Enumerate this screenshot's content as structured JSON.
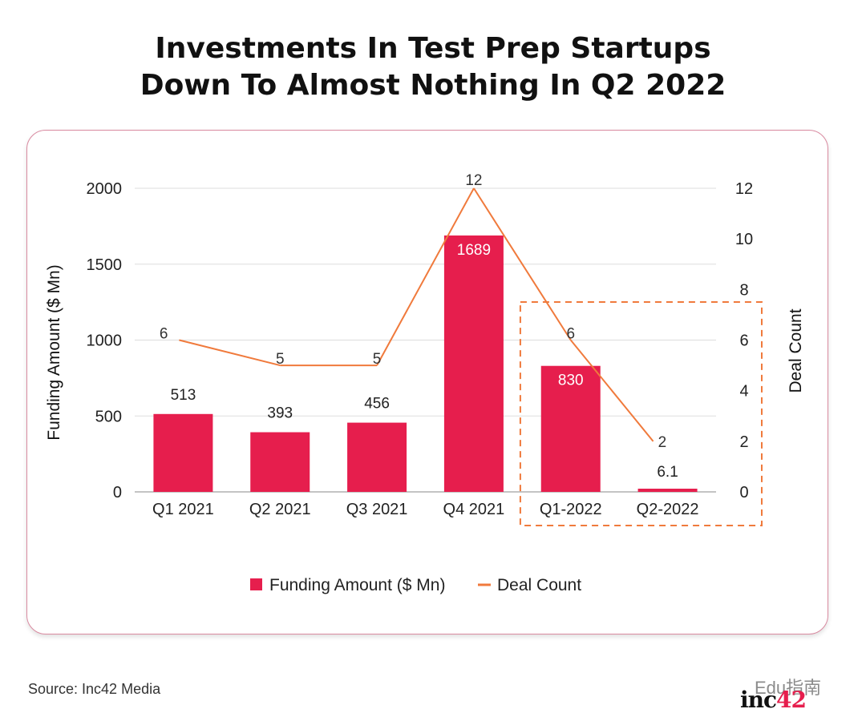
{
  "title_lines": [
    "Investments In Test Prep Startups",
    "Down To Almost Nothing In Q2 2022"
  ],
  "source": "Source: Inc42 Media",
  "watermark": {
    "text": "Edu指南",
    "logo_main": "inc",
    "logo_accent": "42"
  },
  "colors": {
    "bar": "#e61e4d",
    "line": "#f07a3c",
    "highlight_box": "#f07a3c",
    "card_border": "#d98aa0"
  },
  "chart_data": {
    "type": "bar",
    "categories": [
      "Q1 2021",
      "Q2 2021",
      "Q3 2021",
      "Q4 2021",
      "Q1-2022",
      "Q2-2022"
    ],
    "series": [
      {
        "name": "Funding Amount ($ Mn)",
        "type": "bar",
        "axis": "left",
        "values": [
          513,
          393,
          456,
          1689,
          830,
          6.1
        ],
        "labels": [
          "513",
          "393",
          "456",
          "1689",
          "830",
          "6.1"
        ]
      },
      {
        "name": "Deal Count",
        "type": "line",
        "axis": "right",
        "values": [
          6,
          5,
          5,
          12,
          6,
          2
        ],
        "labels": [
          "6",
          "5",
          "5",
          "12",
          "6",
          "2"
        ]
      }
    ],
    "ylabel": "Funding Amount ($ Mn)",
    "y2label": "Deal Count",
    "ylim": [
      0,
      2000
    ],
    "yticks": [
      0,
      500,
      1000,
      1500,
      2000
    ],
    "y2ticks": [
      0,
      2,
      4,
      6,
      8,
      10,
      12
    ],
    "grid": true,
    "legend_position": "bottom-center",
    "highlight_categories": [
      "Q1-2022",
      "Q2-2022"
    ]
  }
}
